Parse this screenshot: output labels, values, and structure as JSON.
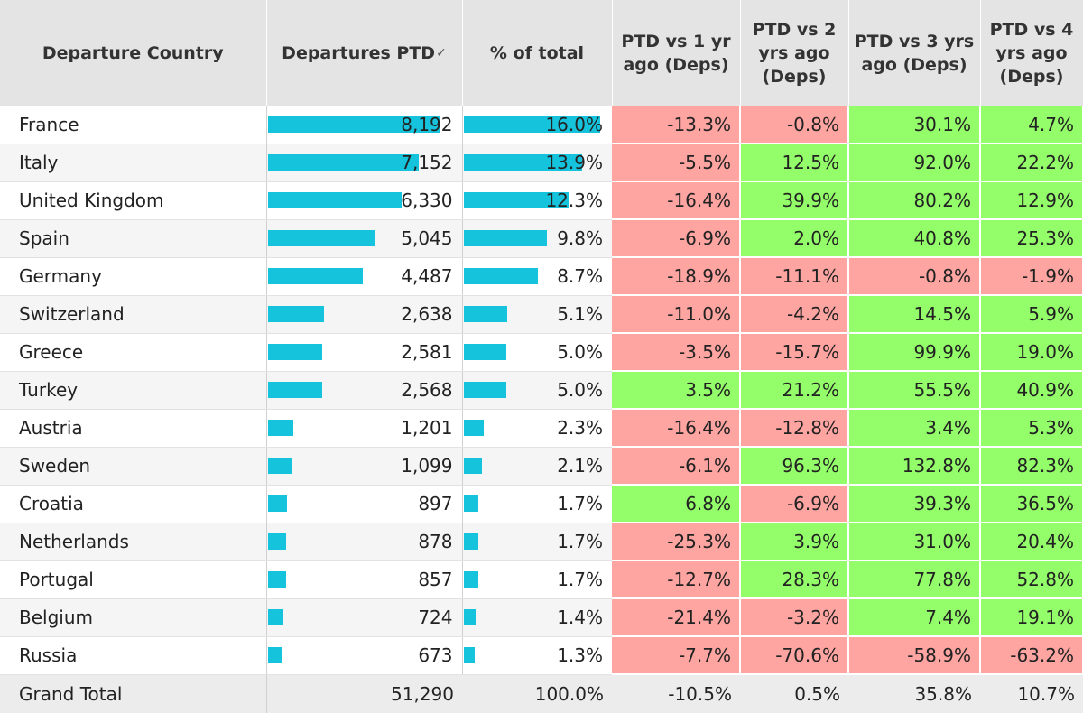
{
  "columns": {
    "country": "Departure Country",
    "departures": "Departures PTD",
    "share": "% of total",
    "vs1": "PTD vs 1 yr ago (Deps)",
    "vs2": "PTD vs 2 yrs ago (Deps)",
    "vs3": "PTD vs 3 yrs ago (Deps)",
    "vs4": "PTD vs 4 yrs ago (Deps)"
  },
  "colors": {
    "bar": "#16c3dc",
    "negative": "#fea4a1",
    "positive": "#93fd6a"
  },
  "chart_data": {
    "type": "table",
    "rows": [
      {
        "country": "France",
        "departures": "8,192",
        "departures_value": 8192,
        "share": "16.0%",
        "share_value": 16.0,
        "vs1": "-13.3%",
        "vs2": "-0.8%",
        "vs3": "30.1%",
        "vs4": "4.7%"
      },
      {
        "country": "Italy",
        "departures": "7,152",
        "departures_value": 7152,
        "share": "13.9%",
        "share_value": 13.9,
        "vs1": "-5.5%",
        "vs2": "12.5%",
        "vs3": "92.0%",
        "vs4": "22.2%"
      },
      {
        "country": "United Kingdom",
        "departures": "6,330",
        "departures_value": 6330,
        "share": "12.3%",
        "share_value": 12.3,
        "vs1": "-16.4%",
        "vs2": "39.9%",
        "vs3": "80.2%",
        "vs4": "12.9%"
      },
      {
        "country": "Spain",
        "departures": "5,045",
        "departures_value": 5045,
        "share": "9.8%",
        "share_value": 9.8,
        "vs1": "-6.9%",
        "vs2": "2.0%",
        "vs3": "40.8%",
        "vs4": "25.3%"
      },
      {
        "country": "Germany",
        "departures": "4,487",
        "departures_value": 4487,
        "share": "8.7%",
        "share_value": 8.7,
        "vs1": "-18.9%",
        "vs2": "-11.1%",
        "vs3": "-0.8%",
        "vs4": "-1.9%"
      },
      {
        "country": "Switzerland",
        "departures": "2,638",
        "departures_value": 2638,
        "share": "5.1%",
        "share_value": 5.1,
        "vs1": "-11.0%",
        "vs2": "-4.2%",
        "vs3": "14.5%",
        "vs4": "5.9%"
      },
      {
        "country": "Greece",
        "departures": "2,581",
        "departures_value": 2581,
        "share": "5.0%",
        "share_value": 5.0,
        "vs1": "-3.5%",
        "vs2": "-15.7%",
        "vs3": "99.9%",
        "vs4": "19.0%"
      },
      {
        "country": "Turkey",
        "departures": "2,568",
        "departures_value": 2568,
        "share": "5.0%",
        "share_value": 5.0,
        "vs1": "3.5%",
        "vs2": "21.2%",
        "vs3": "55.5%",
        "vs4": "40.9%"
      },
      {
        "country": "Austria",
        "departures": "1,201",
        "departures_value": 1201,
        "share": "2.3%",
        "share_value": 2.3,
        "vs1": "-16.4%",
        "vs2": "-12.8%",
        "vs3": "3.4%",
        "vs4": "5.3%"
      },
      {
        "country": "Sweden",
        "departures": "1,099",
        "departures_value": 1099,
        "share": "2.1%",
        "share_value": 2.1,
        "vs1": "-6.1%",
        "vs2": "96.3%",
        "vs3": "132.8%",
        "vs4": "82.3%"
      },
      {
        "country": "Croatia",
        "departures": "897",
        "departures_value": 897,
        "share": "1.7%",
        "share_value": 1.7,
        "vs1": "6.8%",
        "vs2": "-6.9%",
        "vs3": "39.3%",
        "vs4": "36.5%"
      },
      {
        "country": "Netherlands",
        "departures": "878",
        "departures_value": 878,
        "share": "1.7%",
        "share_value": 1.7,
        "vs1": "-25.3%",
        "vs2": "3.9%",
        "vs3": "31.0%",
        "vs4": "20.4%"
      },
      {
        "country": "Portugal",
        "departures": "857",
        "departures_value": 857,
        "share": "1.7%",
        "share_value": 1.7,
        "vs1": "-12.7%",
        "vs2": "28.3%",
        "vs3": "77.8%",
        "vs4": "52.8%"
      },
      {
        "country": "Belgium",
        "departures": "724",
        "departures_value": 724,
        "share": "1.4%",
        "share_value": 1.4,
        "vs1": "-21.4%",
        "vs2": "-3.2%",
        "vs3": "7.4%",
        "vs4": "19.1%"
      },
      {
        "country": "Russia",
        "departures": "673",
        "departures_value": 673,
        "share": "1.3%",
        "share_value": 1.3,
        "vs1": "-7.7%",
        "vs2": "-70.6%",
        "vs3": "-58.9%",
        "vs4": "-63.2%"
      }
    ],
    "total": {
      "label": "Grand Total",
      "departures": "51,290",
      "share": "100.0%",
      "vs1": "-10.5%",
      "vs2": "0.5%",
      "vs3": "35.8%",
      "vs4": "10.7%"
    }
  }
}
